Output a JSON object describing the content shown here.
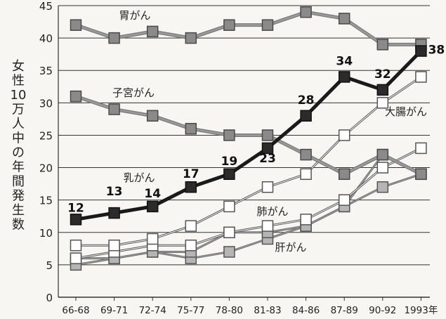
{
  "chart_data": {
    "type": "line",
    "ylabel": "女性10万人中の年間発生数",
    "ylim": [
      0,
      45
    ],
    "yticks": [
      "0",
      "5",
      "10",
      "15",
      "20",
      "25",
      "30",
      "35",
      "40",
      "45"
    ],
    "categories": [
      "66-68",
      "69-71",
      "72-74",
      "75-77",
      "78-80",
      "81-83",
      "84-86",
      "87-89",
      "90-92",
      "1993年"
    ],
    "grid": "horizontal",
    "series": [
      {
        "name": "胃がん",
        "style": "gray-thick",
        "values": [
          42,
          40,
          41,
          40,
          42,
          42,
          44,
          43,
          39,
          39
        ]
      },
      {
        "name": "子宮がん",
        "style": "gray-thick",
        "values": [
          31,
          29,
          28,
          26,
          25,
          25,
          22,
          19,
          22,
          19
        ]
      },
      {
        "name": "乳がん",
        "style": "black-bold",
        "values": [
          12,
          13,
          14,
          17,
          19,
          23,
          28,
          34,
          32,
          38
        ]
      },
      {
        "name": "大腸がん",
        "style": "white-hollow",
        "values": [
          8,
          8,
          9,
          11,
          14,
          17,
          19,
          25,
          30,
          34
        ]
      },
      {
        "name": "肺がん",
        "style": "white-hollow",
        "values": [
          6,
          7,
          8,
          8,
          10,
          11,
          12,
          15,
          20,
          23
        ]
      },
      {
        "name": "肝がん",
        "style": "gray-thin",
        "values": [
          5,
          6,
          7,
          6,
          7,
          9,
          11,
          14,
          17,
          19
        ]
      },
      {
        "name": "",
        "style": "gray-thin",
        "values": [
          6,
          6,
          7,
          7,
          10,
          10,
          11,
          14,
          22,
          19
        ]
      }
    ],
    "data_labels": {
      "series": "乳がん",
      "labels": [
        "12",
        "13",
        "14",
        "17",
        "19",
        "23",
        "28",
        "34",
        "32",
        "38"
      ]
    }
  }
}
